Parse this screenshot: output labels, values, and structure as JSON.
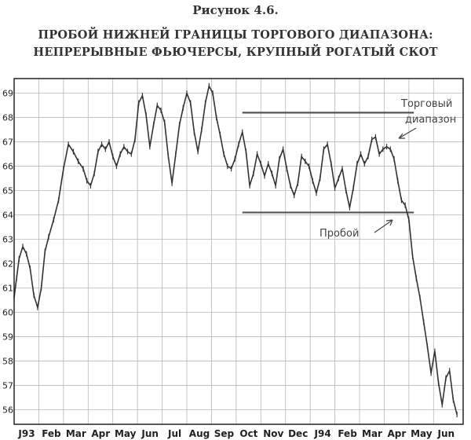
{
  "figure_label": "Рисунок 4.6.",
  "title_line1": "ПРОБОЙ НИЖНЕЙ ГРАНИЦЫ ТОРГОВОГО ДИАПАЗОНА:",
  "title_line2": "НЕПРЕРЫВНЫЕ ФЬЮЧЕРСЫ, КРУПНЫЙ РОГАТЫЙ СКОТ",
  "annotations": {
    "range_line1": "Торговый",
    "range_line2": "диапазон",
    "breakout": "Пробой"
  },
  "chart_data": {
    "type": "line",
    "title": "ПРОБОЙ НИЖНЕЙ ГРАНИЦЫ ТОРГОВОГО ДИАПАЗОНА: НЕПРЕРЫВНЫЕ ФЬЮЧЕРСЫ, КРУПНЫЙ РОГАТЫЙ СКОТ",
    "xlabel": "",
    "ylabel": "",
    "ylim": [
      55.4,
      69.6
    ],
    "xlim": [
      0,
      18.2
    ],
    "grid": true,
    "y_ticks": [
      56,
      57,
      58,
      59,
      60,
      61,
      62,
      63,
      64,
      65,
      66,
      67,
      68,
      69
    ],
    "x_tick_labels": [
      "J93",
      "Feb",
      "Mar",
      "Apr",
      "May",
      "Jun",
      "Jul",
      "Aug",
      "Sep",
      "Oct",
      "Nov",
      "Dec",
      "J94",
      "Feb",
      "Mar",
      "Apr",
      "May",
      "Jun"
    ],
    "series": [
      {
        "x": [
          0,
          0.1,
          0.2,
          0.35,
          0.5,
          0.65,
          0.8,
          0.95,
          1.1,
          1.25,
          1.4,
          1.6,
          1.8,
          2.0,
          2.2,
          2.4,
          2.6,
          2.8,
          2.95,
          3.1,
          3.25,
          3.4,
          3.55,
          3.7,
          3.85,
          4.0,
          4.15,
          4.3,
          4.45,
          4.6,
          4.75,
          4.9,
          5.05,
          5.2,
          5.35,
          5.5,
          5.65,
          5.8,
          5.95,
          6.1,
          6.25,
          6.4,
          6.55,
          6.7,
          6.85,
          7.0,
          7.15,
          7.3,
          7.45,
          7.6,
          7.75,
          7.9,
          8.05,
          8.2,
          8.35,
          8.5,
          8.65,
          8.8,
          8.95,
          9.1,
          9.25,
          9.4,
          9.55,
          9.7,
          9.85,
          10.0,
          10.15,
          10.3,
          10.45,
          10.6,
          10.75,
          10.9,
          11.05,
          11.2,
          11.35,
          11.5,
          11.65,
          11.8,
          11.95,
          12.1,
          12.25,
          12.4,
          12.55,
          12.7,
          12.85,
          13.0,
          13.15,
          13.3,
          13.45,
          13.6,
          13.75,
          13.9,
          14.05,
          14.2,
          14.35,
          14.5,
          14.65,
          14.8,
          14.95,
          15.1,
          15.25,
          15.4,
          15.55,
          15.7,
          15.85,
          16.0,
          16.15,
          16.3,
          16.45,
          16.6,
          16.75,
          16.9,
          17.05,
          17.2,
          17.35,
          17.5,
          17.65,
          17.8,
          17.95
        ],
        "values": [
          60.6,
          61.4,
          62.2,
          62.7,
          62.4,
          61.8,
          60.7,
          60.2,
          61.0,
          62.5,
          63.1,
          63.8,
          64.6,
          65.9,
          66.9,
          66.6,
          66.2,
          65.9,
          65.4,
          65.2,
          65.7,
          66.6,
          66.9,
          66.7,
          67.0,
          66.4,
          66.0,
          66.5,
          66.8,
          66.6,
          66.5,
          67.1,
          68.6,
          68.9,
          68.1,
          66.8,
          67.7,
          68.5,
          68.3,
          67.8,
          66.4,
          65.3,
          66.5,
          67.7,
          68.4,
          69.0,
          68.6,
          67.4,
          66.6,
          67.5,
          68.6,
          69.3,
          69.0,
          68.0,
          67.3,
          66.5,
          66.0,
          65.9,
          66.3,
          66.9,
          67.4,
          66.6,
          65.2,
          65.7,
          66.5,
          66.1,
          65.6,
          66.1,
          65.7,
          65.2,
          66.3,
          66.7,
          65.9,
          65.2,
          64.8,
          65.3,
          66.4,
          66.2,
          66.0,
          65.4,
          64.9,
          65.5,
          66.7,
          66.9,
          66.1,
          65.1,
          65.5,
          65.9,
          65.0,
          64.3,
          65.1,
          66.1,
          66.5,
          66.1,
          66.4,
          67.1,
          67.2,
          66.5,
          66.7,
          66.8,
          66.7,
          66.3,
          65.4,
          64.6,
          64.4,
          63.8,
          62.3,
          61.4,
          60.6,
          59.6,
          58.6,
          57.5,
          58.4,
          57.1,
          56.2,
          57.3,
          57.6,
          56.4,
          55.8
        ]
      }
    ],
    "reference_lines": [
      {
        "label": "Торговый диапазон",
        "y": 68.2,
        "x_start": 9.25,
        "x_end": 16.2
      },
      {
        "label": "Пробой",
        "y": 64.1,
        "x_start": 9.25,
        "x_end": 16.2
      }
    ]
  }
}
